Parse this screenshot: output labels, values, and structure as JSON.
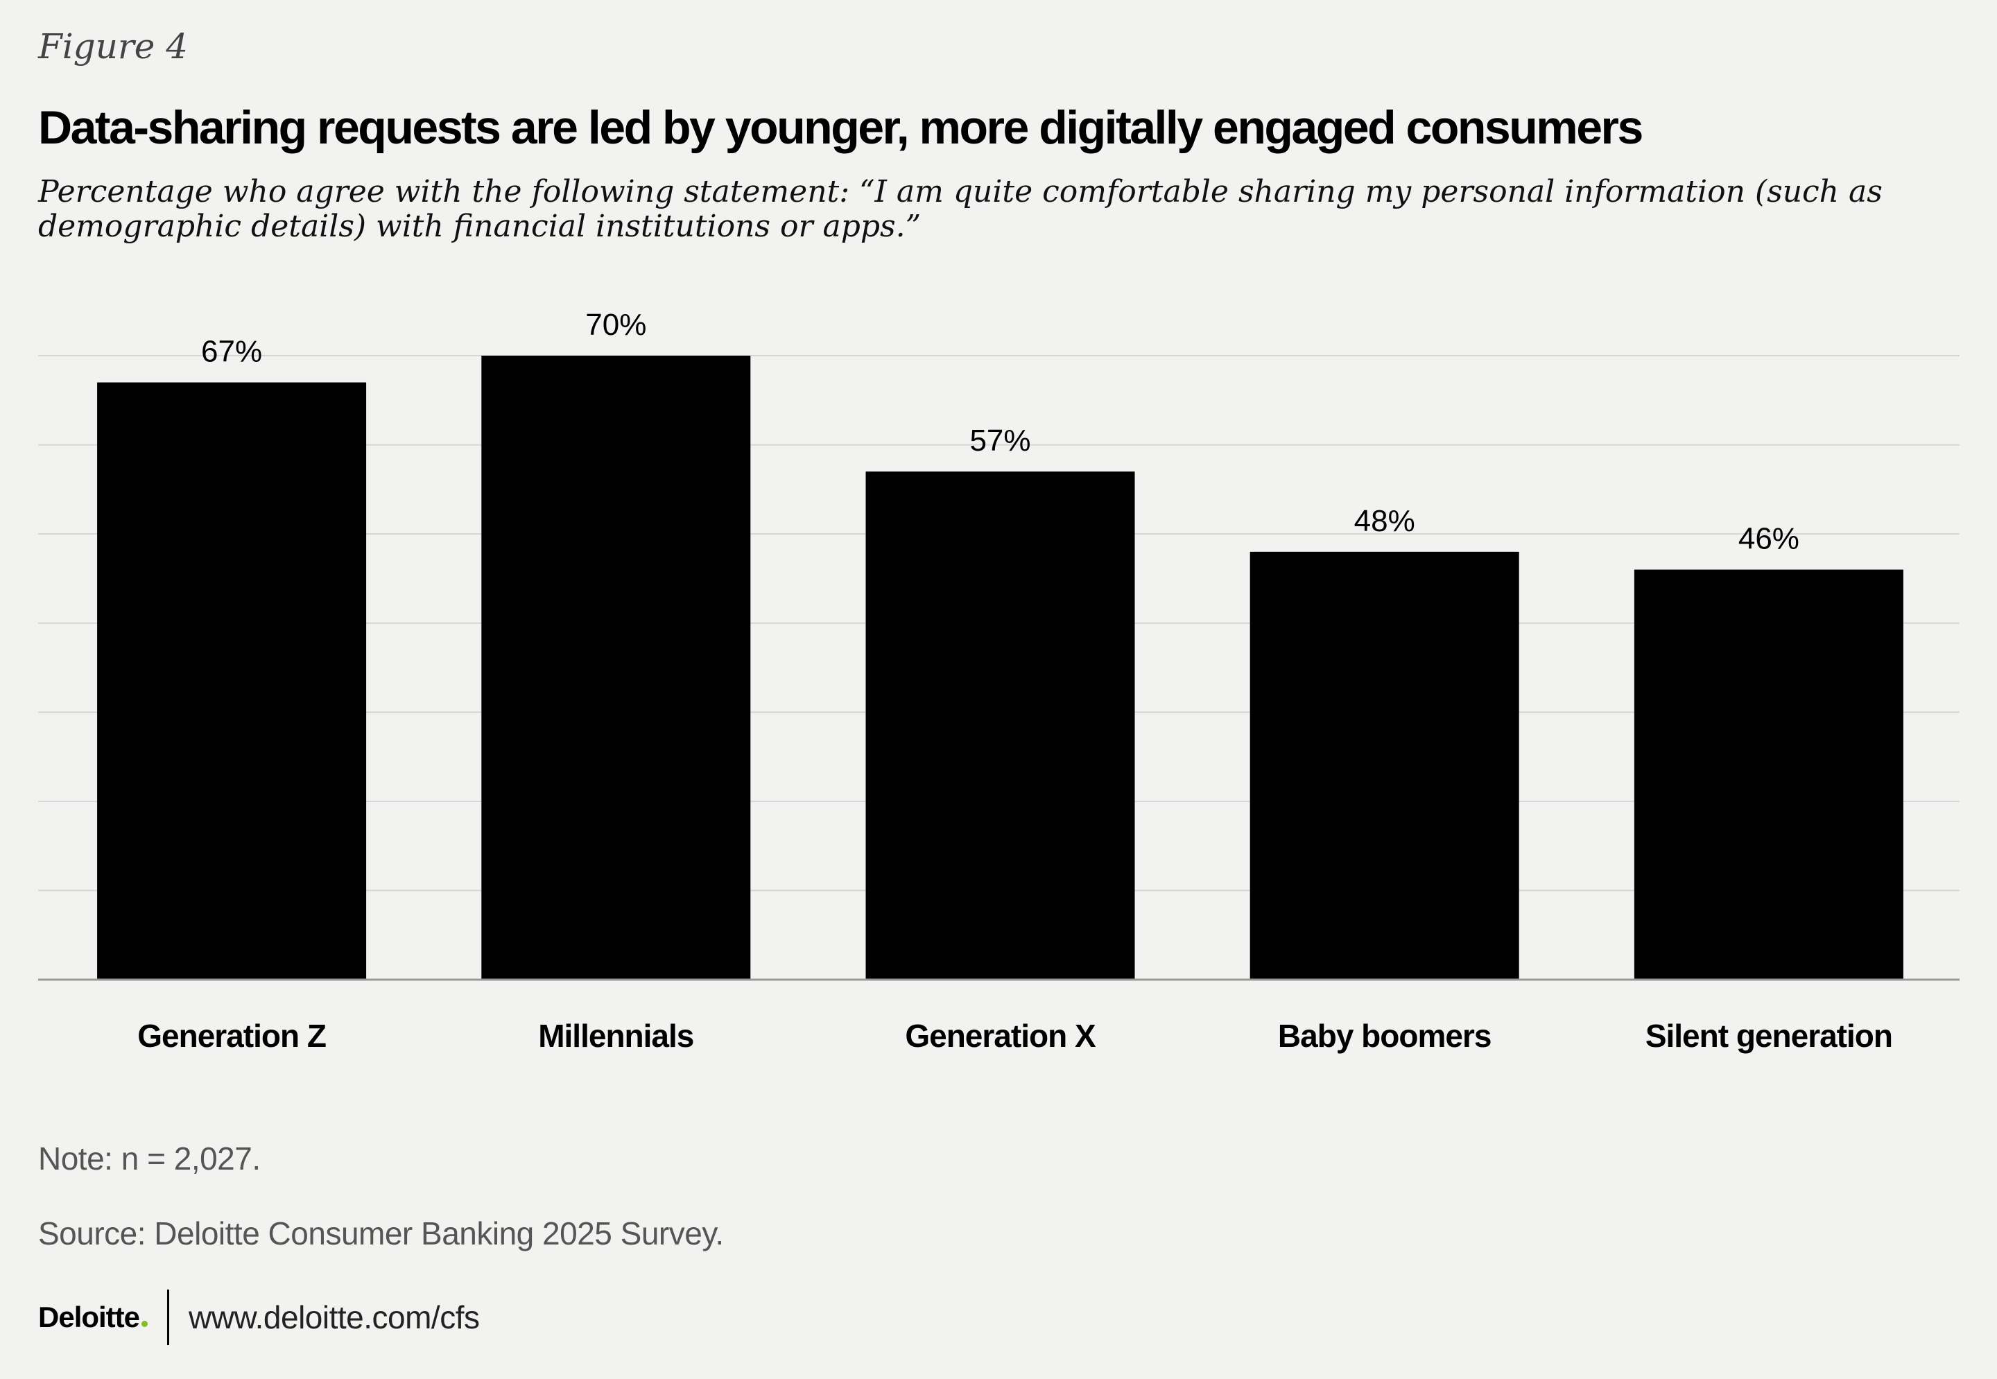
{
  "figure_label": "Figure 4",
  "title": "Data-sharing requests are led by younger, more digitally engaged consumers",
  "subtitle": "Percentage who agree with the following statement: “I am quite comfortable sharing my personal information (such as demographic details) with financial institutions or apps.”",
  "chart_data": {
    "type": "bar",
    "categories": [
      "Generation Z",
      "Millennials",
      "Generation X",
      "Baby boomers",
      "Silent generation"
    ],
    "values": [
      67,
      70,
      57,
      48,
      46
    ],
    "value_labels": [
      "67%",
      "70%",
      "57%",
      "48%",
      "46%"
    ],
    "unit": "%",
    "ylim": [
      0,
      70
    ],
    "gridline_step": 10,
    "grid": true,
    "xlabel": "",
    "ylabel": "",
    "legend": "none",
    "bar_color": "#000000"
  },
  "note": "Note: n = 2,027.",
  "source": "Source: Deloitte Consumer Banking 2025 Survey.",
  "footer": {
    "logo_text": "Deloitte",
    "logo_dot_color": "#86bc25",
    "url": "www.deloitte.com/cfs"
  },
  "colors": {
    "background": "#f2f2f1",
    "gridline": "#d6d6d6",
    "axis": "#999999"
  }
}
